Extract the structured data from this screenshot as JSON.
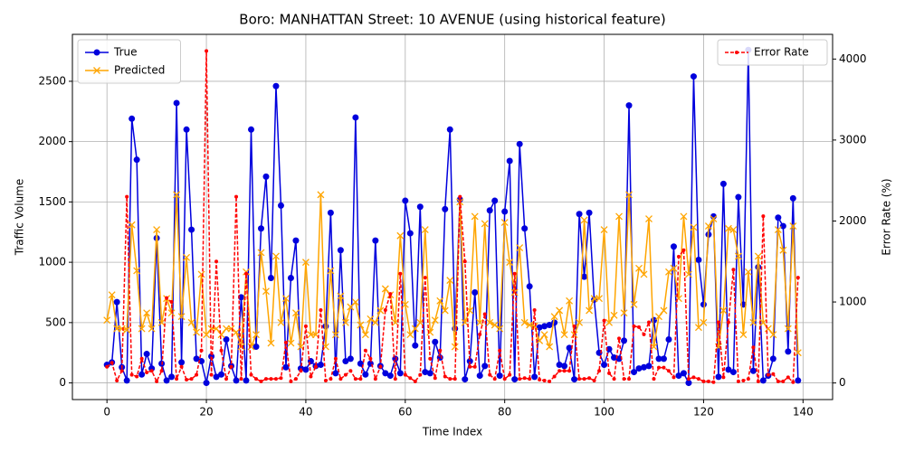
{
  "chart_data": {
    "type": "line",
    "title": "Boro: MANHATTAN Street: 10 AVENUE (using historical feature)",
    "xlabel": "Time Index",
    "ylabel": "Traffic Volume",
    "y2label": "Error Rate (%)",
    "x": [
      0,
      1,
      2,
      3,
      4,
      5,
      6,
      7,
      8,
      9,
      10,
      11,
      12,
      13,
      14,
      15,
      16,
      17,
      18,
      19,
      20,
      21,
      22,
      23,
      24,
      25,
      26,
      27,
      28,
      29,
      30,
      31,
      32,
      33,
      34,
      35,
      36,
      37,
      38,
      39,
      40,
      41,
      42,
      43,
      44,
      45,
      46,
      47,
      48,
      49,
      50,
      51,
      52,
      53,
      54,
      55,
      56,
      57,
      58,
      59,
      60,
      61,
      62,
      63,
      64,
      65,
      66,
      67,
      68,
      69,
      70,
      71,
      72,
      73,
      74,
      75,
      76,
      77,
      78,
      79,
      80,
      81,
      82,
      83,
      84,
      85,
      86,
      87,
      88,
      89,
      90,
      91,
      92,
      93,
      94,
      95,
      96,
      97,
      98,
      99,
      100,
      101,
      102,
      103,
      104,
      105,
      106,
      107,
      108,
      109,
      110,
      111,
      112,
      113,
      114,
      115,
      116,
      117,
      118,
      119,
      120,
      121,
      122,
      123,
      124,
      125,
      126,
      127,
      128,
      129,
      130,
      131,
      132,
      133,
      134,
      135,
      136,
      137,
      138,
      139
    ],
    "series": [
      {
        "name": "True",
        "color": "#0000dd",
        "marker": "circle",
        "values": [
          150,
          170,
          670,
          130,
          20,
          2190,
          1850,
          70,
          240,
          120,
          1200,
          160,
          20,
          50,
          2320,
          170,
          2100,
          1270,
          200,
          180,
          0,
          220,
          50,
          70,
          360,
          140,
          20,
          710,
          20,
          2100,
          300,
          1280,
          1710,
          870,
          2460,
          1470,
          130,
          870,
          1180,
          120,
          110,
          180,
          140,
          150,
          470,
          1410,
          80,
          1100,
          180,
          200,
          2200,
          160,
          70,
          160,
          1180,
          140,
          80,
          60,
          200,
          80,
          1510,
          1240,
          310,
          1460,
          90,
          80,
          340,
          210,
          1440,
          2100,
          450,
          1520,
          30,
          180,
          750,
          60,
          140,
          1430,
          1510,
          60,
          1420,
          1840,
          30,
          1980,
          1280,
          800,
          50,
          460,
          470,
          480,
          500,
          150,
          140,
          290,
          30,
          1400,
          880,
          1410,
          690,
          250,
          150,
          280,
          210,
          200,
          350,
          2300,
          90,
          120,
          130,
          140,
          520,
          200,
          200,
          360,
          1130,
          60,
          80,
          0,
          2540,
          1020,
          650,
          1230,
          1380,
          50,
          1650,
          110,
          90,
          1540,
          650,
          2760,
          100,
          960,
          20,
          60,
          200,
          1370,
          1300,
          260,
          1530,
          20
        ]
      },
      {
        "name": "Predicted",
        "color": "#ffa500",
        "marker": "x",
        "values": [
          520,
          730,
          450,
          450,
          440,
          1310,
          930,
          450,
          580,
          450,
          1270,
          500,
          700,
          580,
          1560,
          550,
          1040,
          500,
          420,
          900,
          400,
          450,
          450,
          400,
          450,
          450,
          420,
          300,
          920,
          300,
          400,
          1080,
          760,
          330,
          1050,
          500,
          700,
          330,
          580,
          300,
          1000,
          400,
          400,
          1560,
          300,
          930,
          400,
          720,
          500,
          630,
          670,
          480,
          400,
          530,
          500,
          600,
          780,
          730,
          500,
          1220,
          650,
          400,
          450,
          500,
          1270,
          420,
          520,
          680,
          600,
          850,
          300,
          1500,
          500,
          600,
          1380,
          500,
          1320,
          500,
          480,
          450,
          1330,
          1000,
          750,
          1120,
          500,
          480,
          470,
          350,
          400,
          300,
          550,
          600,
          400,
          680,
          400,
          500,
          1350,
          600,
          700,
          700,
          1270,
          500,
          560,
          1380,
          580,
          1560,
          650,
          950,
          900,
          1360,
          300,
          550,
          600,
          920,
          950,
          700,
          1380,
          900,
          1290,
          460,
          500,
          1300,
          1360,
          300,
          600,
          1280,
          1270,
          1050,
          400,
          920,
          500,
          1050,
          500,
          450,
          400,
          1270,
          1100,
          450,
          1300,
          250
        ]
      },
      {
        "name": "Error Rate",
        "color": "#ff0000",
        "marker": "dot",
        "dashed": true,
        "axis": "y2",
        "values": [
          200,
          250,
          30,
          150,
          2300,
          100,
          80,
          300,
          130,
          150,
          20,
          150,
          1050,
          1000,
          50,
          200,
          40,
          50,
          100,
          400,
          4100,
          100,
          1500,
          400,
          50,
          200,
          2300,
          50,
          1350,
          100,
          50,
          20,
          50,
          50,
          50,
          60,
          500,
          20,
          50,
          150,
          700,
          80,
          200,
          900,
          30,
          50,
          300,
          50,
          100,
          150,
          50,
          50,
          400,
          300,
          50,
          200,
          900,
          1100,
          50,
          1350,
          100,
          60,
          20,
          100,
          1300,
          300,
          60,
          400,
          80,
          50,
          50,
          2300,
          1500,
          200,
          200,
          600,
          850,
          100,
          50,
          400,
          50,
          100,
          1350,
          50,
          60,
          50,
          900,
          40,
          30,
          20,
          80,
          150,
          150,
          150,
          700,
          50,
          50,
          60,
          30,
          150,
          770,
          120,
          50,
          550,
          50,
          50,
          700,
          690,
          600,
          750,
          50,
          190,
          190,
          150,
          70,
          1560,
          1640,
          50,
          70,
          50,
          20,
          20,
          10,
          750,
          70,
          750,
          1400,
          20,
          30,
          50,
          440,
          20,
          2060,
          100,
          110,
          20,
          20,
          70,
          10,
          1300
        ]
      }
    ],
    "xlim": [
      -6.95,
      145.95
    ],
    "xticks": [
      0,
      20,
      40,
      60,
      80,
      100,
      120,
      140
    ],
    "ylim": [
      -138,
      2889
    ],
    "yticks": [
      0,
      500,
      1000,
      1500,
      2000,
      2500
    ],
    "y2lim": [
      -205,
      4305
    ],
    "y2ticks": [
      0,
      1000,
      2000,
      3000,
      4000
    ],
    "grid": true,
    "legend": "upper left",
    "legend2": "upper right"
  }
}
